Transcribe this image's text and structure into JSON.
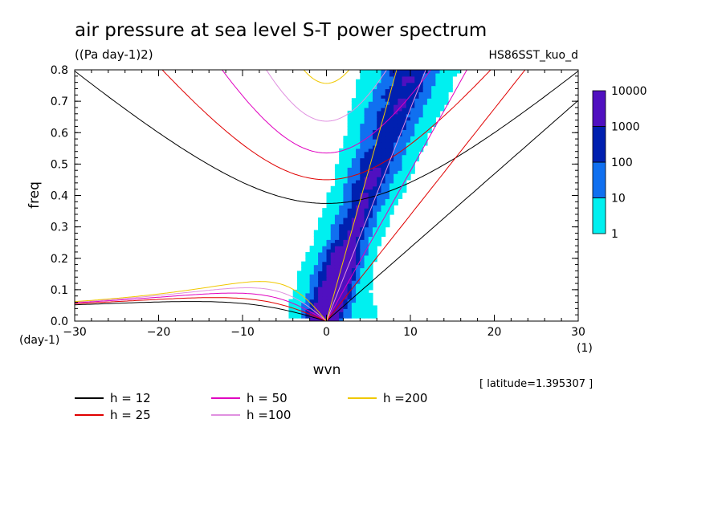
{
  "chart_data": {
    "type": "heatmap",
    "title": "air pressure at sea level S-T power spectrum",
    "units": "((Pa day-1)2)",
    "run_label": "HS86SST_kuo_d",
    "xlabel": "wvn",
    "ylabel": "freq",
    "x_unit": "(1)",
    "y_unit": "(day-1)",
    "xlim": [
      -30,
      30
    ],
    "ylim": [
      0,
      0.8
    ],
    "x_ticks": [
      -30,
      -20,
      -10,
      0,
      10,
      20,
      30
    ],
    "y_ticks": [
      0.0,
      0.1,
      0.2,
      0.3,
      0.4,
      0.5,
      0.6,
      0.7,
      0.8
    ],
    "annotation": "[ latitude=1.395307 ]",
    "colorbar": {
      "levels": [
        "1",
        "10",
        "100",
        "1000",
        "10000"
      ],
      "colors": [
        "#00f0f0",
        "#1070f0",
        "#0020b0",
        "#5010c0"
      ]
    },
    "dispersion_curves": [
      {
        "name": "h = 12",
        "h": 12,
        "color": "#000000"
      },
      {
        "name": "h = 25",
        "h": 25,
        "color": "#e00000"
      },
      {
        "name": "h = 50",
        "h": 50,
        "color": "#e000c0"
      },
      {
        "name": "h =100",
        "h": 100,
        "color": "#e090e0"
      },
      {
        "name": "h =200",
        "h": 200,
        "color": "#f0c800"
      }
    ]
  }
}
